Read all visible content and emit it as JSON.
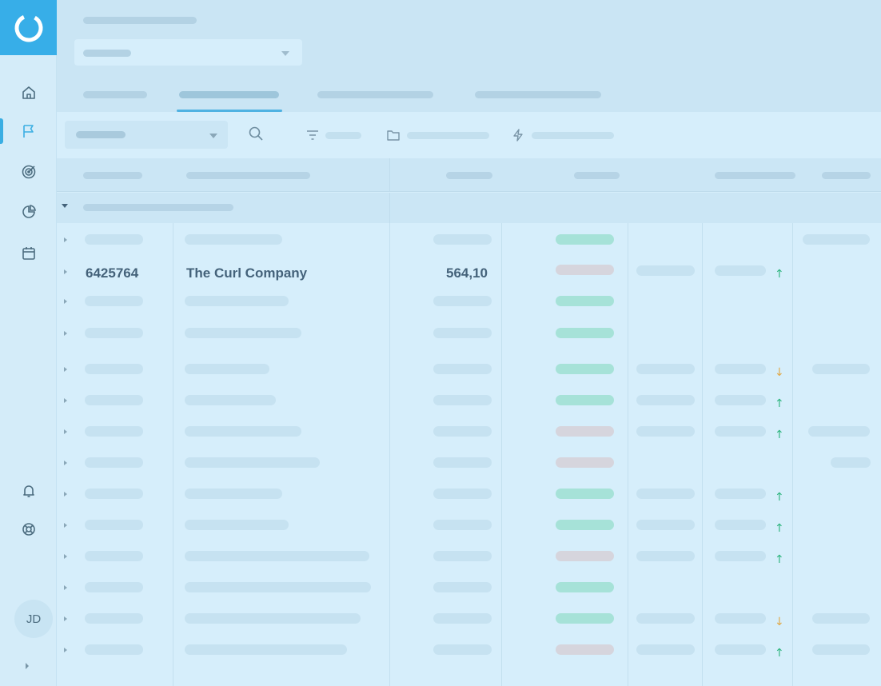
{
  "user": {
    "initials": "JD"
  },
  "colors": {
    "brand": "#37aee8",
    "up": "#2fb57f",
    "down": "#e0a94a",
    "status_positive": "#a6e2d8",
    "status_neutral": "#d6d5dd"
  },
  "sidebar": {
    "logo_icon": "brand-ring-logo",
    "items": [
      {
        "icon": "home-icon"
      },
      {
        "icon": "flag-icon",
        "active": true
      },
      {
        "icon": "target-icon"
      },
      {
        "icon": "pie-chart-icon"
      },
      {
        "icon": "calendar-icon"
      }
    ],
    "bottom_items": [
      {
        "icon": "bell-icon"
      },
      {
        "icon": "lifebuoy-icon"
      }
    ]
  },
  "table": {
    "highlighted_row": {
      "id": "6425764",
      "name": "The Curl Company",
      "value": "564,10",
      "status": "neutral",
      "trend": "up"
    },
    "rows": [
      {
        "status": "positive",
        "trend": ""
      },
      {
        "status": "neutral",
        "trend": "up"
      },
      {
        "status": "positive",
        "trend": ""
      },
      {
        "status": "positive",
        "trend": ""
      },
      {
        "status": "positive",
        "trend": "down"
      },
      {
        "status": "positive",
        "trend": "up"
      },
      {
        "status": "neutral",
        "trend": "up"
      },
      {
        "status": "neutral",
        "trend": ""
      },
      {
        "status": "positive",
        "trend": "up"
      },
      {
        "status": "positive",
        "trend": "up"
      },
      {
        "status": "neutral",
        "trend": "up"
      },
      {
        "status": "positive",
        "trend": ""
      },
      {
        "status": "positive",
        "trend": "down"
      },
      {
        "status": "neutral",
        "trend": "up"
      }
    ],
    "arrow_up": "↑",
    "arrow_down": "↓"
  }
}
